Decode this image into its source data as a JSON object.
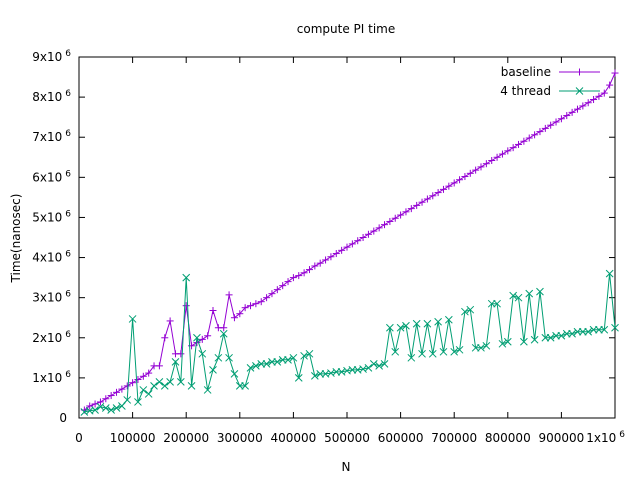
{
  "chart_data": {
    "type": "line",
    "title": "compute PI time",
    "xlabel": "N",
    "ylabel": "Time(nanosec)",
    "xlim": [
      0,
      1000000
    ],
    "ylim": [
      0,
      9000000
    ],
    "grid": false,
    "legend_position": "top-right",
    "x_ticks": [
      {
        "value": 0,
        "label": "0"
      },
      {
        "value": 100000,
        "label": "100000"
      },
      {
        "value": 200000,
        "label": "200000"
      },
      {
        "value": 300000,
        "label": "300000"
      },
      {
        "value": 400000,
        "label": "400000"
      },
      {
        "value": 500000,
        "label": "500000"
      },
      {
        "value": 600000,
        "label": "600000"
      },
      {
        "value": 700000,
        "label": "700000"
      },
      {
        "value": 800000,
        "label": "800000"
      },
      {
        "value": 900000,
        "label": "900000"
      },
      {
        "value": 1000000,
        "label": "1x10",
        "exp": "6"
      }
    ],
    "y_ticks": [
      {
        "value": 0,
        "label": "0"
      },
      {
        "value": 1000000,
        "label": "1x10",
        "exp": "6"
      },
      {
        "value": 2000000,
        "label": "2x10",
        "exp": "6"
      },
      {
        "value": 3000000,
        "label": "3x10",
        "exp": "6"
      },
      {
        "value": 4000000,
        "label": "4x10",
        "exp": "6"
      },
      {
        "value": 5000000,
        "label": "5x10",
        "exp": "6"
      },
      {
        "value": 6000000,
        "label": "6x10",
        "exp": "6"
      },
      {
        "value": 7000000,
        "label": "7x10",
        "exp": "6"
      },
      {
        "value": 8000000,
        "label": "8x10",
        "exp": "6"
      },
      {
        "value": 9000000,
        "label": "9x10",
        "exp": "6"
      }
    ],
    "x": [
      10000,
      20000,
      30000,
      40000,
      50000,
      60000,
      70000,
      80000,
      90000,
      100000,
      110000,
      120000,
      130000,
      140000,
      150000,
      160000,
      170000,
      180000,
      190000,
      200000,
      210000,
      220000,
      230000,
      240000,
      250000,
      260000,
      270000,
      280000,
      290000,
      300000,
      310000,
      320000,
      330000,
      340000,
      350000,
      360000,
      370000,
      380000,
      390000,
      400000,
      410000,
      420000,
      430000,
      440000,
      450000,
      460000,
      470000,
      480000,
      490000,
      500000,
      510000,
      520000,
      530000,
      540000,
      550000,
      560000,
      570000,
      580000,
      590000,
      600000,
      610000,
      620000,
      630000,
      640000,
      650000,
      660000,
      670000,
      680000,
      690000,
      700000,
      710000,
      720000,
      730000,
      740000,
      750000,
      760000,
      770000,
      780000,
      790000,
      800000,
      810000,
      820000,
      830000,
      840000,
      850000,
      860000,
      870000,
      880000,
      890000,
      900000,
      910000,
      920000,
      930000,
      940000,
      950000,
      960000,
      970000,
      980000,
      990000,
      1000000
    ],
    "series": [
      {
        "name": "baseline",
        "color": "#9400D3",
        "marker": "plus",
        "values": [
          200000,
          300000,
          350000,
          400000,
          480000,
          560000,
          640000,
          720000,
          800000,
          880000,
          960000,
          1040000,
          1120000,
          1300000,
          1300000,
          2000000,
          2420000,
          1600000,
          1600000,
          2800000,
          1800000,
          1880000,
          1960000,
          2050000,
          2680000,
          2250000,
          2250000,
          3070000,
          2500000,
          2600000,
          2750000,
          2800000,
          2850000,
          2900000,
          3000000,
          3100000,
          3200000,
          3300000,
          3400000,
          3500000,
          3550000,
          3620000,
          3700000,
          3790000,
          3860000,
          3940000,
          4020000,
          4100000,
          4180000,
          4260000,
          4340000,
          4420000,
          4500000,
          4580000,
          4660000,
          4740000,
          4820000,
          4900000,
          4980000,
          5060000,
          5140000,
          5220000,
          5300000,
          5380000,
          5460000,
          5540000,
          5620000,
          5700000,
          5780000,
          5860000,
          5940000,
          6020000,
          6100000,
          6180000,
          6260000,
          6340000,
          6420000,
          6500000,
          6580000,
          6660000,
          6740000,
          6820000,
          6900000,
          6980000,
          7060000,
          7140000,
          7220000,
          7300000,
          7380000,
          7460000,
          7540000,
          7620000,
          7700000,
          7780000,
          7860000,
          7940000,
          8020000,
          8100000,
          8300000,
          8600000
        ]
      },
      {
        "name": "4 thread",
        "color": "#009E73",
        "marker": "cross",
        "values": [
          150000,
          180000,
          200000,
          280000,
          250000,
          200000,
          250000,
          300000,
          450000,
          2470000,
          400000,
          700000,
          600000,
          800000,
          900000,
          800000,
          900000,
          1400000,
          900000,
          3500000,
          800000,
          2000000,
          1600000,
          700000,
          1200000,
          1500000,
          2100000,
          1500000,
          1100000,
          800000,
          800000,
          1250000,
          1300000,
          1350000,
          1350000,
          1400000,
          1400000,
          1450000,
          1450000,
          1500000,
          1000000,
          1550000,
          1600000,
          1050000,
          1100000,
          1100000,
          1120000,
          1150000,
          1150000,
          1180000,
          1200000,
          1200000,
          1220000,
          1250000,
          1350000,
          1300000,
          1350000,
          2250000,
          1650000,
          2250000,
          2300000,
          1500000,
          2350000,
          1600000,
          2350000,
          1600000,
          2400000,
          1650000,
          2450000,
          1650000,
          1700000,
          2650000,
          2700000,
          1750000,
          1750000,
          1800000,
          2850000,
          2850000,
          1850000,
          1900000,
          3050000,
          3000000,
          1900000,
          3100000,
          1950000,
          3150000,
          2000000,
          2000000,
          2050000,
          2050000,
          2100000,
          2100000,
          2150000,
          2150000,
          2150000,
          2200000,
          2200000,
          2200000,
          3600000,
          2250000
        ]
      }
    ]
  }
}
